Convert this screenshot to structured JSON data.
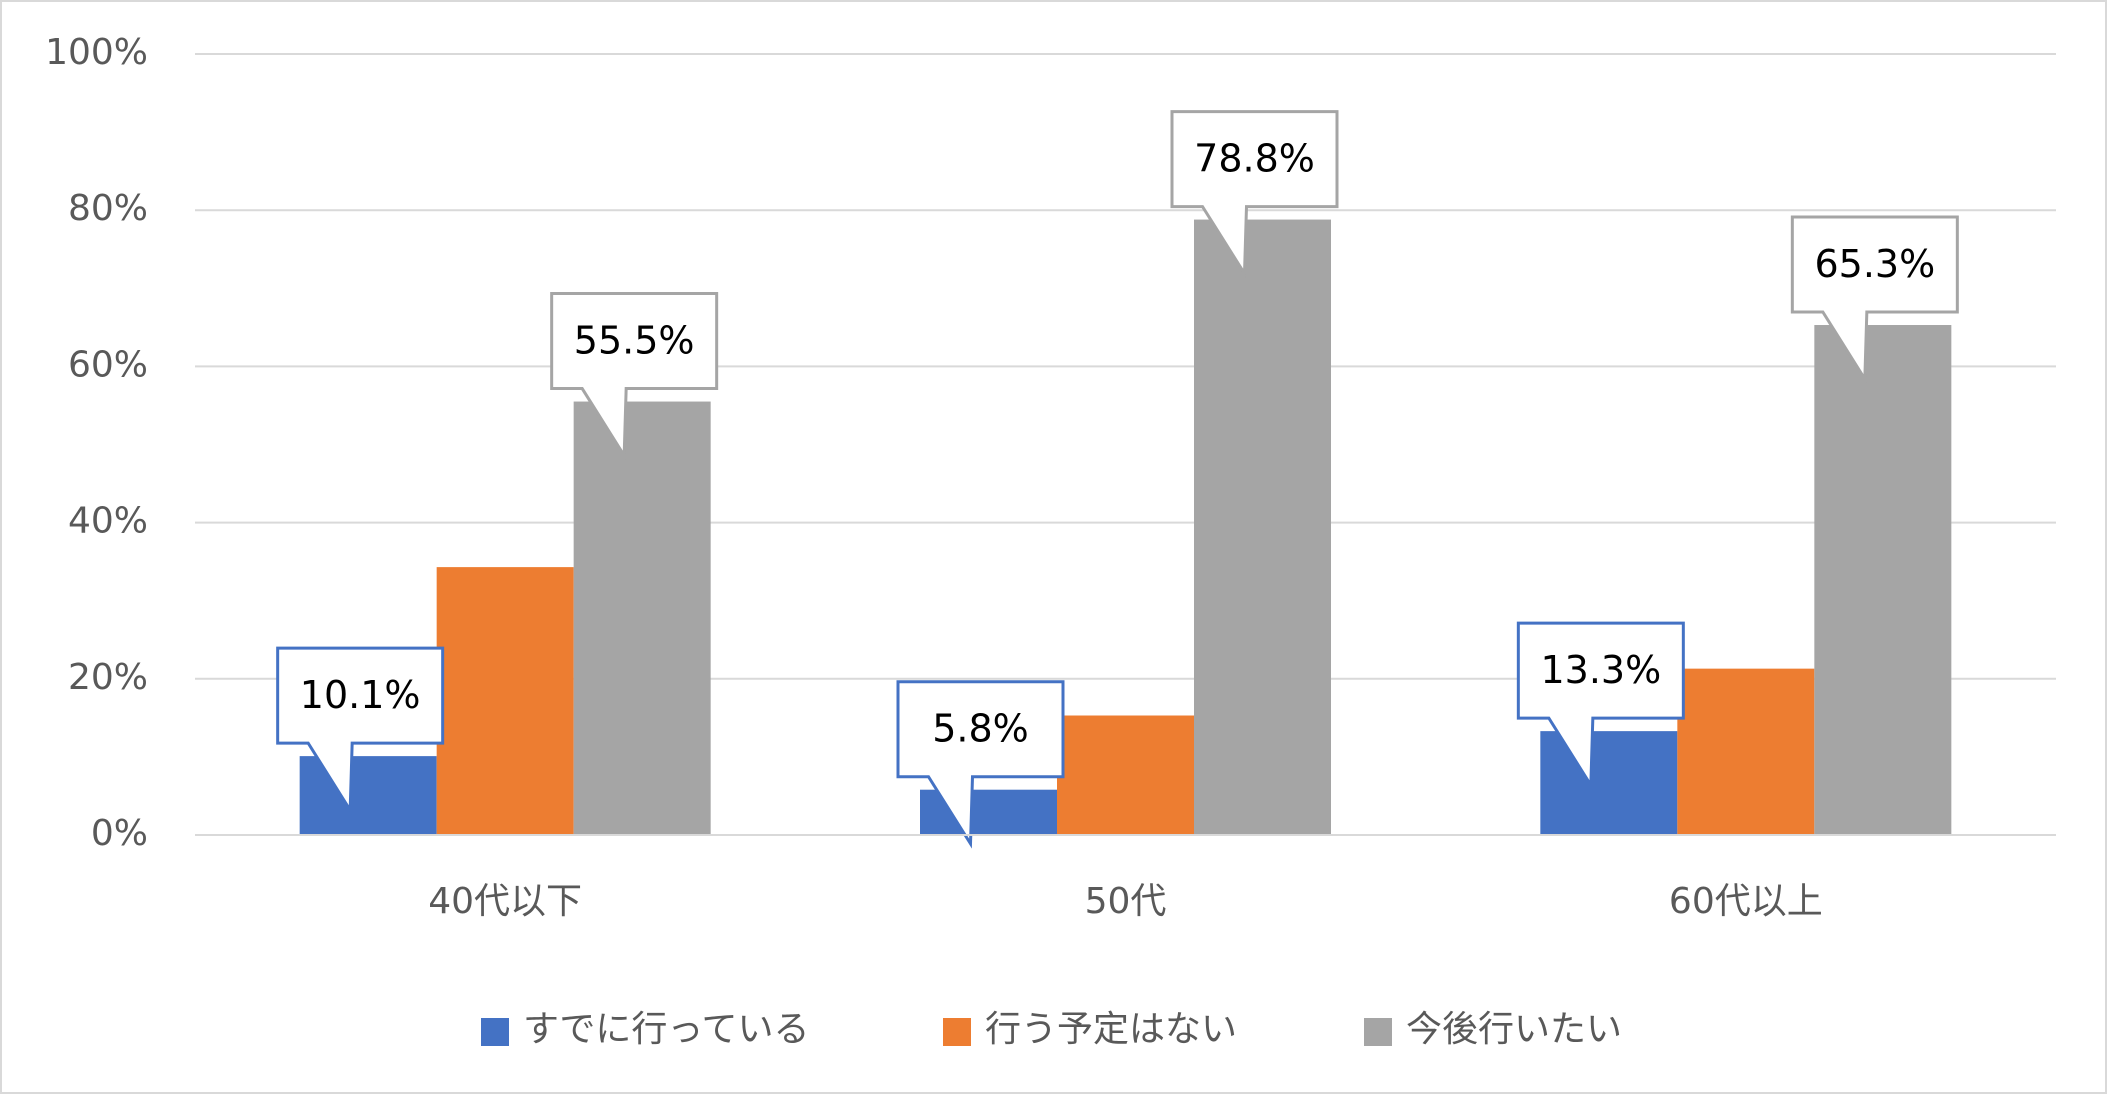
{
  "chart_data": {
    "type": "bar",
    "categories": [
      "40代以下",
      "50代",
      "60代以上"
    ],
    "series": [
      {
        "name": "すでに行っている",
        "color": "#4472c4",
        "values": [
          10.1,
          5.8,
          13.3
        ],
        "value_labels": [
          "10.1%",
          "5.8%",
          "13.3%"
        ]
      },
      {
        "name": "行う予定はない",
        "color": "#ed7d31",
        "values": [
          34.3,
          15.3,
          21.3
        ]
      },
      {
        "name": "今後行いたい",
        "color": "#a5a5a5",
        "values": [
          55.5,
          78.8,
          65.3
        ],
        "value_labels": [
          "55.5%",
          "78.8%",
          "65.3%"
        ]
      }
    ],
    "ylim": [
      0,
      100
    ],
    "yticks": [
      {
        "value": 0,
        "label": "0%"
      },
      {
        "value": 20,
        "label": "20%"
      },
      {
        "value": 40,
        "label": "40%"
      },
      {
        "value": 60,
        "label": "60%"
      },
      {
        "value": 80,
        "label": "80%"
      },
      {
        "value": 100,
        "label": "100%"
      }
    ],
    "grid": true,
    "legend": "bottom"
  }
}
